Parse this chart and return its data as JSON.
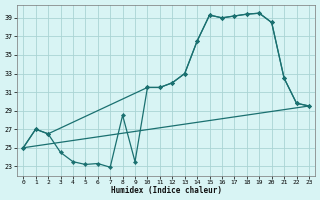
{
  "xlabel": "Humidex (Indice chaleur)",
  "bg_color": "#d8f4f4",
  "grid_color": "#aad4d4",
  "line_color": "#1a7070",
  "xlim": [
    -0.5,
    23.5
  ],
  "ylim": [
    22.0,
    40.4
  ],
  "yticks": [
    23,
    25,
    27,
    29,
    31,
    33,
    35,
    37,
    39
  ],
  "xticks": [
    0,
    1,
    2,
    3,
    4,
    5,
    6,
    7,
    8,
    9,
    10,
    11,
    12,
    13,
    14,
    15,
    16,
    17,
    18,
    19,
    20,
    21,
    22,
    23
  ],
  "line1_x": [
    0,
    1,
    2,
    3,
    4,
    5,
    6,
    7,
    8,
    9,
    10,
    11,
    12,
    13,
    14,
    15,
    16,
    17,
    18,
    19,
    20,
    21,
    22,
    23
  ],
  "line1_y": [
    25,
    27,
    26.5,
    24.5,
    23.5,
    23.2,
    23.3,
    22.9,
    28.5,
    23.5,
    31.5,
    31.5,
    32.0,
    33.0,
    36.5,
    39.3,
    39.0,
    39.2,
    39.4,
    39.5,
    38.5,
    32.5,
    29.8,
    29.5
  ],
  "line2_x": [
    0,
    1,
    2,
    10,
    11,
    12,
    13,
    14,
    15,
    16,
    17,
    18,
    19,
    20,
    21,
    22,
    23
  ],
  "line2_y": [
    25,
    27,
    26.5,
    31.5,
    31.5,
    32.0,
    33.0,
    36.5,
    39.3,
    39.0,
    39.2,
    39.4,
    39.5,
    38.5,
    32.5,
    29.8,
    29.5
  ],
  "line3_x": [
    0,
    23
  ],
  "line3_y": [
    25.0,
    29.5
  ]
}
